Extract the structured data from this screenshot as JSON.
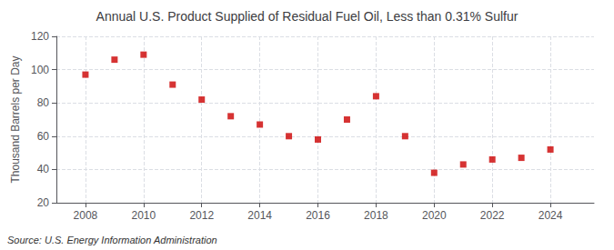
{
  "chart_data": {
    "type": "scatter",
    "title": "Annual U.S. Product Supplied of Residual Fuel Oil, Less than 0.31% Sulfur",
    "ylabel": "Thousand Barrels per Day",
    "annotation": "Source: U.S. Energy Information Administration",
    "x": [
      2008,
      2009,
      2010,
      2011,
      2012,
      2013,
      2014,
      2015,
      2016,
      2017,
      2018,
      2019,
      2020,
      2021,
      2022,
      2023,
      2024
    ],
    "values": [
      97,
      106,
      109,
      91,
      82,
      72,
      67,
      60,
      58,
      70,
      84,
      60,
      38,
      43,
      46,
      47,
      52
    ],
    "color": "#cc0000",
    "marker": "square",
    "xlim": [
      2007.0,
      2025.5
    ],
    "xticks": [
      2008,
      2010,
      2012,
      2014,
      2016,
      2018,
      2020,
      2022,
      2024
    ],
    "ylim": [
      20,
      120
    ],
    "yticks": [
      20,
      40,
      60,
      80,
      100,
      120
    ],
    "grid": true
  }
}
